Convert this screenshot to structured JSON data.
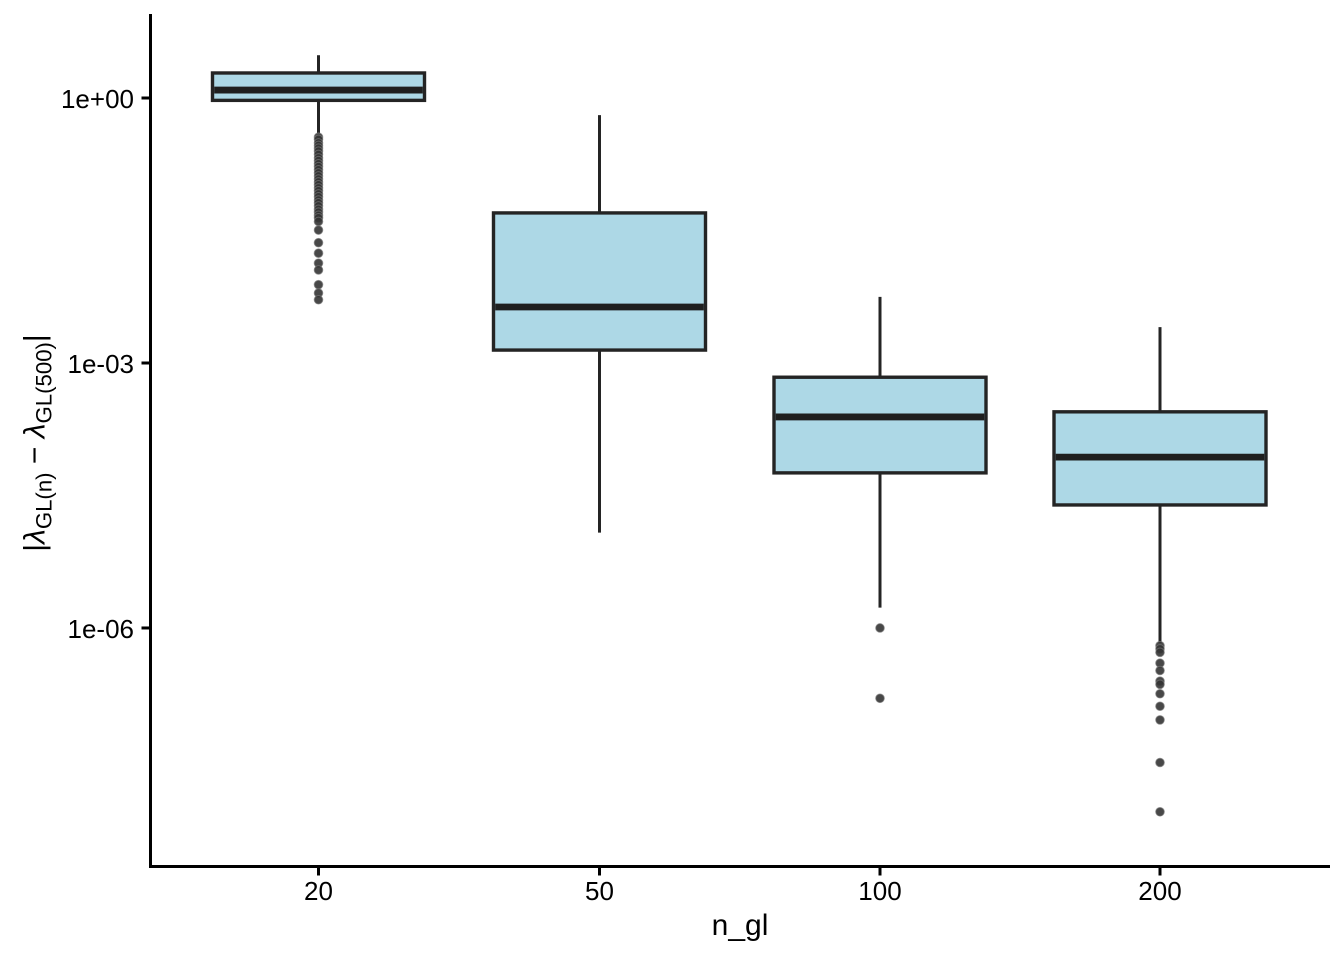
{
  "chart_data": {
    "type": "boxplot",
    "title": "",
    "xlabel": "n_gl",
    "ylabel": "|λ_GL(n) − λ_GL(500)|",
    "ylabel_parts": {
      "open": "|",
      "lambda": "λ",
      "sub1": "GL(n)",
      "minus": " − ",
      "sub2": "GL(500)",
      "close": "|"
    },
    "yscale": "log10",
    "ylim": [
      2e-09,
      8.9
    ],
    "grid": "off",
    "yticks": [
      {
        "label": "1e+00",
        "value": 1
      },
      {
        "label": "1e-03",
        "value": 0.001
      },
      {
        "label": "1e-06",
        "value": 1e-06
      }
    ],
    "categories": [
      "20",
      "50",
      "100",
      "200"
    ],
    "boxes": [
      {
        "category": "20",
        "whisker_low": 0.4,
        "q1": 0.94,
        "median": 1.23,
        "q3": 1.92,
        "whisker_high": 3.05,
        "outliers": [
          0.36,
          0.34,
          0.31,
          0.29,
          0.27,
          0.25,
          0.23,
          0.21,
          0.195,
          0.18,
          0.167,
          0.154,
          0.142,
          0.131,
          0.121,
          0.112,
          0.104,
          0.096,
          0.089,
          0.082,
          0.076,
          0.07,
          0.065,
          0.06,
          0.055,
          0.051,
          0.047,
          0.044,
          0.04,
          0.032,
          0.023,
          0.0175,
          0.0135,
          0.0113,
          0.0077,
          0.0062,
          0.0052
        ]
      },
      {
        "category": "50",
        "whisker_low": 1.2e-05,
        "q1": 0.0014,
        "median": 0.0043,
        "q3": 0.05,
        "whisker_high": 0.64,
        "outliers": []
      },
      {
        "category": "100",
        "whisker_low": 1.7e-06,
        "q1": 5.7e-05,
        "median": 0.000245,
        "q3": 0.00069,
        "whisker_high": 0.0056,
        "outliers": [
          1e-06,
          1.6e-07
        ]
      },
      {
        "category": "200",
        "whisker_low": 6.8e-07,
        "q1": 2.47e-05,
        "median": 8.6e-05,
        "q3": 0.00028,
        "whisker_high": 0.00255,
        "outliers": [
          6.3e-07,
          5.8e-07,
          5.3e-07,
          4e-07,
          3.3e-07,
          2.5e-07,
          2.3e-07,
          1.8e-07,
          1.3e-07,
          9.1e-08,
          3e-08,
          8.3e-09
        ]
      }
    ],
    "colors": {
      "box_fill": "#ADD8E6",
      "box_stroke": "#242424",
      "median": "#1f1f1f",
      "outlier_fill": "#343434",
      "outlier_edge": "#787878",
      "axis": "#000000",
      "background": "#ffffff"
    }
  }
}
